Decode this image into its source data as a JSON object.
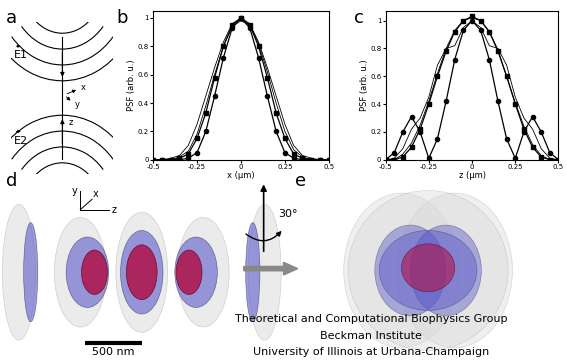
{
  "panel_labels": [
    "a",
    "b",
    "c",
    "d",
    "e"
  ],
  "diagram_a": {
    "fields": [
      "E1",
      "E2"
    ],
    "axes": [
      "x",
      "y",
      "z"
    ]
  },
  "chart_data": [
    {
      "type": "line",
      "xlabel": "x (µm)",
      "ylabel": "PSF (arb. u.)",
      "xlim": [
        -0.5,
        0.5
      ],
      "ylim": [
        0,
        1.05
      ],
      "xticks": [
        -0.5,
        -0.25,
        0,
        0.25,
        0.5
      ],
      "yticks": [
        0,
        0.2,
        0.4,
        0.6,
        0.8,
        1
      ],
      "x": [
        -0.5,
        -0.45,
        -0.4,
        -0.35,
        -0.3,
        -0.25,
        -0.2,
        -0.15,
        -0.1,
        -0.05,
        0,
        0.05,
        0.1,
        0.15,
        0.2,
        0.25,
        0.3,
        0.35,
        0.4,
        0.45,
        0.5
      ],
      "series": [
        {
          "color": "#000000",
          "marker": "o",
          "line_style": "solid",
          "values": [
            0,
            0,
            0,
            0,
            0.01,
            0.05,
            0.2,
            0.45,
            0.72,
            0.93,
            1,
            0.93,
            0.72,
            0.45,
            0.2,
            0.05,
            0.01,
            0,
            0,
            0,
            0
          ]
        },
        {
          "color": "#000000",
          "marker": "s",
          "line_style": "solid",
          "values": [
            0,
            0,
            0,
            0.01,
            0.04,
            0.15,
            0.33,
            0.58,
            0.8,
            0.95,
            1,
            0.95,
            0.8,
            0.58,
            0.33,
            0.15,
            0.04,
            0.01,
            0,
            0,
            0
          ]
        },
        {
          "color": "#000000",
          "marker": "none",
          "line_style": "solid",
          "values": [
            0,
            0,
            0.01,
            0.03,
            0.1,
            0.25,
            0.45,
            0.65,
            0.83,
            0.96,
            1,
            0.96,
            0.83,
            0.65,
            0.45,
            0.25,
            0.1,
            0.03,
            0.01,
            0,
            0
          ]
        },
        {
          "color": "#000000",
          "marker": "none",
          "line_style": "solid",
          "values": [
            0,
            0,
            0,
            0.02,
            0.06,
            0.18,
            0.38,
            0.6,
            0.8,
            0.94,
            0.98,
            0.95,
            0.82,
            0.62,
            0.4,
            0.2,
            0.07,
            0.02,
            0,
            0,
            0
          ]
        }
      ]
    },
    {
      "type": "line",
      "xlabel": "z (µm)",
      "ylabel": "PSF (arb. u.)",
      "xlim": [
        -0.5,
        0.5
      ],
      "ylim": [
        0,
        1.07
      ],
      "xticks": [
        -0.5,
        -0.25,
        0,
        0.25,
        0.5
      ],
      "yticks": [
        0,
        0.2,
        0.4,
        0.6,
        0.8,
        1
      ],
      "x": [
        -0.5,
        -0.45,
        -0.4,
        -0.35,
        -0.3,
        -0.25,
        -0.2,
        -0.15,
        -0.1,
        -0.05,
        0,
        0.05,
        0.1,
        0.15,
        0.2,
        0.25,
        0.3,
        0.35,
        0.4,
        0.45,
        0.5
      ],
      "series": [
        {
          "color": "#000000",
          "marker": "o",
          "line_style": "solid",
          "values": [
            0,
            0.05,
            0.2,
            0.31,
            0.2,
            0.01,
            0.15,
            0.42,
            0.72,
            0.93,
            1,
            0.93,
            0.72,
            0.42,
            0.15,
            0.01,
            0.2,
            0.31,
            0.2,
            0.05,
            0
          ]
        },
        {
          "color": "#000000",
          "marker": "s",
          "line_style": "solid",
          "values": [
            0,
            0,
            0.02,
            0.09,
            0.22,
            0.4,
            0.6,
            0.78,
            0.92,
            1.0,
            1.03,
            1.0,
            0.92,
            0.78,
            0.6,
            0.4,
            0.22,
            0.09,
            0.02,
            0,
            0
          ]
        },
        {
          "color": "#000000",
          "marker": "none",
          "line_style": "solid",
          "values": [
            0,
            0.01,
            0.08,
            0.22,
            0.3,
            0.45,
            0.68,
            0.8,
            0.82,
            0.95,
            1.0,
            0.95,
            0.82,
            0.8,
            0.68,
            0.45,
            0.3,
            0.22,
            0.08,
            0.01,
            0
          ]
        },
        {
          "color": "#000000",
          "marker": "none",
          "line_style": "solid",
          "values": [
            0,
            0,
            0.04,
            0.12,
            0.25,
            0.42,
            0.62,
            0.8,
            0.93,
            1.0,
            1.02,
            1.0,
            0.92,
            0.79,
            0.6,
            0.41,
            0.24,
            0.11,
            0.03,
            0,
            0
          ]
        }
      ]
    }
  ],
  "diagram_d": {
    "axes": [
      "y",
      "x",
      "z"
    ],
    "scale_bar": "500 nm"
  },
  "rotation": "30°",
  "footer": [
    "Theoretical and Computational Biophysics Group",
    "Beckman Institute",
    "University of Illinois at Urbana-Champaign"
  ]
}
